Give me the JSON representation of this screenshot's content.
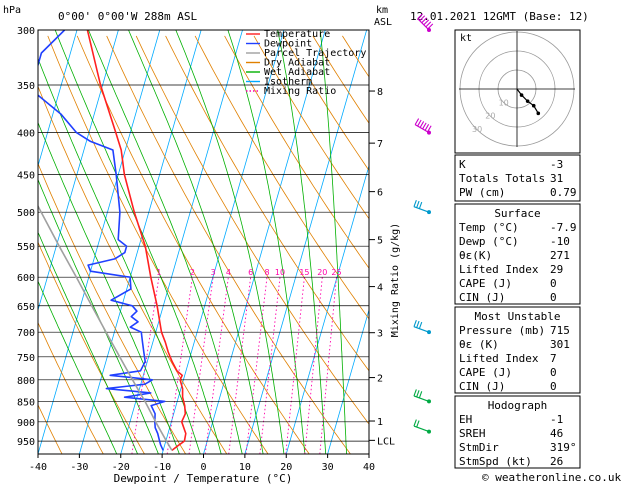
{
  "header": {
    "hpa_label": "hPa",
    "location": "0°00' 0°00'W 288m ASL",
    "km_label": "km",
    "asl_label": "ASL",
    "datetime": "12.01.2021 12GMT (Base: 12)"
  },
  "legend": {
    "items": [
      {
        "label": "Temperature",
        "color": "#ff2020",
        "dash": "solid"
      },
      {
        "label": "Dewpoint",
        "color": "#2040ff",
        "dash": "solid"
      },
      {
        "label": "Parcel Trajectory",
        "color": "#a0a0a0",
        "dash": "solid"
      },
      {
        "label": "Dry Adiabat",
        "color": "#e08000",
        "dash": "solid"
      },
      {
        "label": "Wet Adiabat",
        "color": "#00b000",
        "dash": "solid"
      },
      {
        "label": "Isotherm",
        "color": "#00aaff",
        "dash": "solid"
      },
      {
        "label": "Mixing Ratio",
        "color": "#ff00aa",
        "dash": "dotted"
      }
    ]
  },
  "chart_data": {
    "type": "line",
    "title": "",
    "xlabel": "Dewpoint / Temperature (°C)",
    "ylabel": "hPa",
    "right_axis_label": "Mixing Ratio (g/kg)",
    "x_ticks": [
      -40,
      -30,
      -20,
      -10,
      0,
      10,
      20,
      30,
      40
    ],
    "xlim": [
      -40,
      40
    ],
    "pressure_levels": [
      300,
      350,
      400,
      450,
      500,
      550,
      600,
      650,
      700,
      750,
      800,
      850,
      900,
      950
    ],
    "pressure_range": [
      300,
      985
    ],
    "skew_deg_per_decade": 57,
    "km_ticks": [
      {
        "label": "8",
        "p": 356
      },
      {
        "label": "7",
        "p": 412
      },
      {
        "label": "6",
        "p": 472
      },
      {
        "label": "5",
        "p": 540
      },
      {
        "label": "4",
        "p": 616
      },
      {
        "label": "3",
        "p": 701
      },
      {
        "label": "2",
        "p": 795
      },
      {
        "label": "1",
        "p": 898
      },
      {
        "label": "LCL",
        "p": 948
      }
    ],
    "mixing_ratio_labels": [
      "1",
      "2",
      "3",
      "4",
      "6",
      "8",
      "10",
      "15",
      "20",
      "25"
    ],
    "mixing_ratio_values": [
      1,
      2,
      3,
      4,
      6,
      8,
      10,
      15,
      20,
      25
    ],
    "isotherms": [
      -100,
      -90,
      -80,
      -70,
      -60,
      -50,
      -40,
      -30,
      -20,
      -10,
      0,
      10,
      20,
      30,
      40
    ],
    "dry_adiabats_theta": [
      240,
      250,
      260,
      270,
      280,
      290,
      300,
      310,
      320,
      330,
      340,
      350,
      360,
      370,
      380,
      390,
      400
    ],
    "series": [
      {
        "name": "Temperature",
        "color": "#ff2020",
        "p": [
          975,
          960,
          950,
          930,
          900,
          880,
          860,
          840,
          820,
          800,
          790,
          780,
          760,
          740,
          720,
          700,
          650,
          600,
          550,
          500,
          450,
          420,
          400,
          350,
          300
        ],
        "t": [
          -7.9,
          -6.5,
          -5.5,
          -5.7,
          -7.5,
          -7.2,
          -7.9,
          -9.0,
          -9.6,
          -10.8,
          -10.6,
          -12.2,
          -14.0,
          -15.6,
          -17.0,
          -18.6,
          -21.5,
          -25.0,
          -28.5,
          -33.5,
          -38.5,
          -41.0,
          -43.5,
          -50.5,
          -57.5
        ]
      },
      {
        "name": "Dewpoint",
        "color": "#2040ff",
        "p": [
          975,
          960,
          950,
          930,
          915,
          900,
          880,
          860,
          850,
          840,
          830,
          820,
          810,
          800,
          790,
          780,
          760,
          740,
          720,
          700,
          690,
          680,
          670,
          660,
          650,
          640,
          620,
          600,
          590,
          580,
          570,
          560,
          550,
          540,
          500,
          450,
          420,
          410,
          400,
          380,
          360,
          350,
          340,
          320,
          300
        ],
        "t": [
          -10.0,
          -11.0,
          -11.5,
          -12.5,
          -13.5,
          -14.0,
          -14.5,
          -16.0,
          -13.0,
          -23.0,
          -17.0,
          -28.0,
          -19.0,
          -17.5,
          -28.0,
          -21.0,
          -20.5,
          -21.5,
          -22.5,
          -23.5,
          -26.5,
          -25.0,
          -27.0,
          -26.0,
          -27.5,
          -33.0,
          -29.0,
          -30.0,
          -40.0,
          -41.0,
          -35.0,
          -33.0,
          -33.0,
          -35.5,
          -37.0,
          -40.5,
          -43.0,
          -49.0,
          -53.0,
          -58.0,
          -65.0,
          -67.0,
          -67.0,
          -67.0,
          -63.0
        ]
      },
      {
        "name": "Parcel Trajectory",
        "color": "#a0a0a0",
        "p": [
          975,
          948,
          900,
          850,
          800,
          750,
          700,
          650,
          600,
          550,
          500,
          450,
          400,
          350,
          300
        ],
        "t": [
          -7.9,
          -10.0,
          -13.8,
          -17.8,
          -22.3,
          -27.0,
          -32.0,
          -37.3,
          -43.0,
          -49.3,
          -56.0,
          -63.5,
          -71.5,
          -80.5,
          -90.0
        ]
      }
    ],
    "wind_barbs": [
      {
        "p": 300,
        "dir": 315,
        "speed_kt": 65
      },
      {
        "p": 400,
        "dir": 300,
        "speed_kt": 55
      },
      {
        "p": 500,
        "dir": 290,
        "speed_kt": 30
      },
      {
        "p": 700,
        "dir": 290,
        "speed_kt": 25
      },
      {
        "p": 850,
        "dir": 290,
        "speed_kt": 25
      },
      {
        "p": 925,
        "dir": 290,
        "speed_kt": 20
      }
    ]
  },
  "hodograph": {
    "label": "kt",
    "ring_labels": [
      "10",
      "20",
      "30"
    ],
    "points_uv": [
      [
        0,
        0
      ],
      [
        1.5,
        -2
      ],
      [
        3.5,
        -4
      ],
      [
        5.5,
        -5.5
      ],
      [
        7,
        -8
      ]
    ]
  },
  "indices": {
    "rows": [
      {
        "label": "K",
        "value": "-3"
      },
      {
        "label": "Totals Totals",
        "value": "31"
      },
      {
        "label": "PW (cm)",
        "value": "0.79"
      }
    ]
  },
  "surface": {
    "title": "Surface",
    "rows": [
      {
        "label": "Temp (°C)",
        "value": "-7.9"
      },
      {
        "label": "Dewp (°C)",
        "value": "-10"
      },
      {
        "label": "θε(K)",
        "value": "271"
      },
      {
        "label": "Lifted Index",
        "value": "29"
      },
      {
        "label": "CAPE (J)",
        "value": "0"
      },
      {
        "label": "CIN (J)",
        "value": "0"
      }
    ]
  },
  "most_unstable": {
    "title": "Most Unstable",
    "rows": [
      {
        "label": "Pressure (mb)",
        "value": "715"
      },
      {
        "label": "θε (K)",
        "value": "301"
      },
      {
        "label": "Lifted Index",
        "value": "7"
      },
      {
        "label": "CAPE (J)",
        "value": "0"
      },
      {
        "label": "CIN (J)",
        "value": "0"
      }
    ]
  },
  "hodograph_table": {
    "title": "Hodograph",
    "rows": [
      {
        "label": "EH",
        "value": "-1"
      },
      {
        "label": "SREH",
        "value": "46"
      },
      {
        "label": "StmDir",
        "value": "319°"
      },
      {
        "label": "StmSpd (kt)",
        "value": "26"
      }
    ]
  },
  "footer": {
    "copyright": "© weatheronline.co.uk"
  }
}
